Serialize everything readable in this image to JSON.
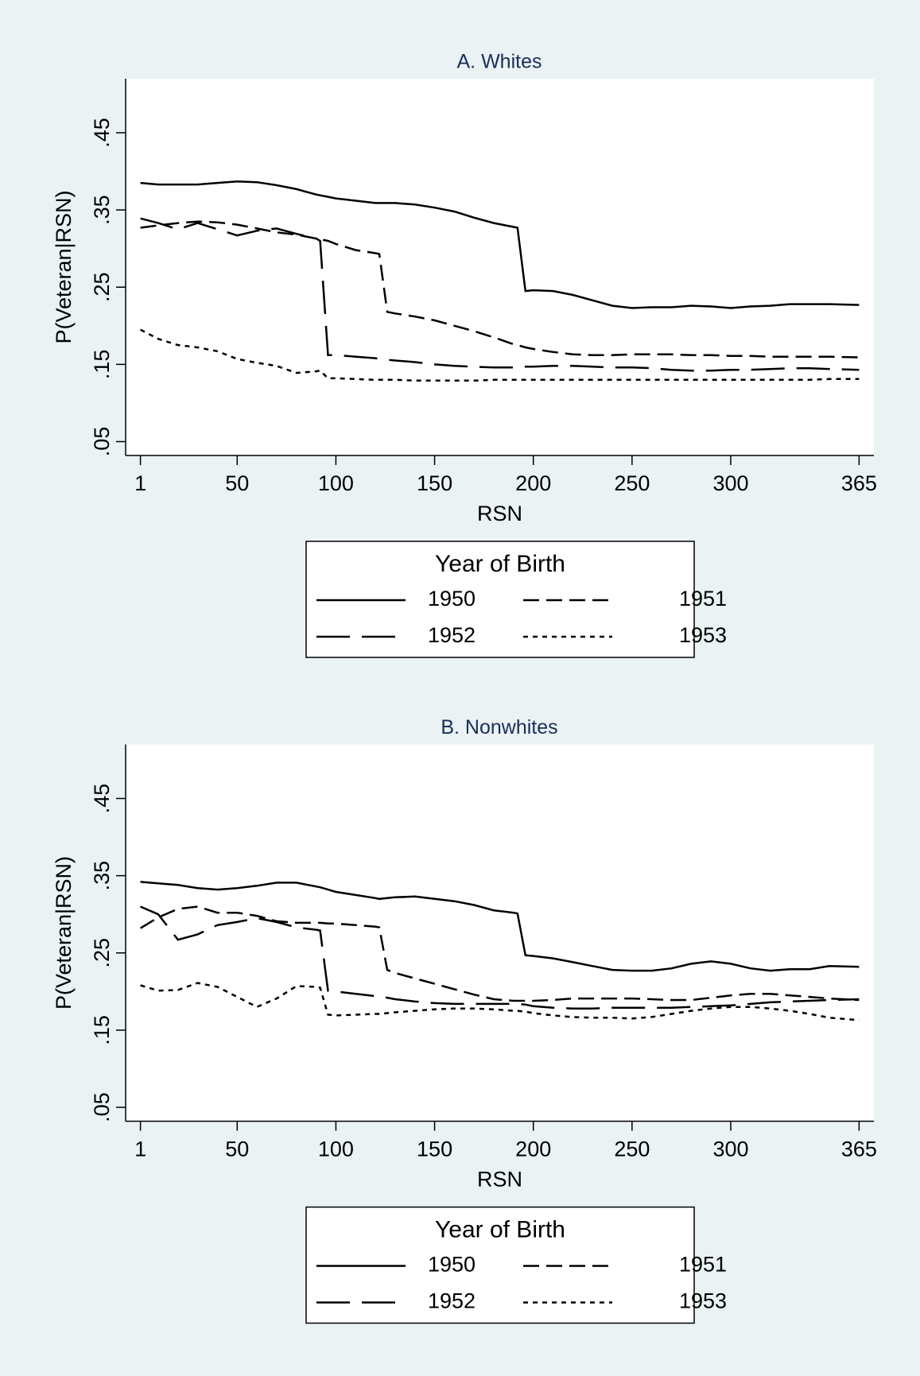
{
  "chart_data": [
    {
      "type": "line",
      "title": "A. Whites",
      "x_label": "RSN",
      "y_label": "P(Veteran|RSN)",
      "legend_title": "Year of Birth",
      "color": "#000000",
      "x": [
        1,
        10,
        20,
        30,
        40,
        50,
        60,
        70,
        80,
        90,
        92,
        96,
        100,
        110,
        120,
        122,
        126,
        130,
        140,
        150,
        160,
        170,
        180,
        190,
        192,
        196,
        200,
        210,
        220,
        230,
        240,
        250,
        260,
        270,
        280,
        290,
        300,
        310,
        320,
        330,
        340,
        350,
        365
      ],
      "xlim": [
        -6.5,
        372.5
      ],
      "xticks": [
        1,
        50,
        100,
        150,
        200,
        250,
        300,
        365
      ],
      "ylim": [
        0.032,
        0.52
      ],
      "yticks": [
        {
          "value": 0.05,
          "label": ".05"
        },
        {
          "value": 0.15,
          "label": ".15"
        },
        {
          "value": 0.25,
          "label": ".25"
        },
        {
          "value": 0.35,
          "label": ".35"
        },
        {
          "value": 0.45,
          "label": ".45"
        }
      ],
      "series": [
        {
          "name": "1950",
          "dash": "solid",
          "values": [
            0.385,
            0.383,
            0.383,
            0.383,
            0.385,
            0.387,
            0.386,
            0.382,
            0.377,
            0.37,
            0.369,
            0.367,
            0.365,
            0.362,
            0.359,
            0.359,
            0.359,
            0.359,
            0.357,
            0.353,
            0.348,
            0.34,
            0.333,
            0.328,
            0.327,
            0.245,
            0.246,
            0.245,
            0.24,
            0.233,
            0.226,
            0.223,
            0.224,
            0.224,
            0.226,
            0.225,
            0.223,
            0.225,
            0.226,
            0.228,
            0.228,
            0.228,
            0.227
          ]
        },
        {
          "name": "1951",
          "dash": "medium-dash",
          "values": [
            0.327,
            0.33,
            0.333,
            0.335,
            0.334,
            0.331,
            0.326,
            0.321,
            0.318,
            0.313,
            0.312,
            0.31,
            0.306,
            0.298,
            0.294,
            0.293,
            0.218,
            0.216,
            0.212,
            0.207,
            0.2,
            0.193,
            0.185,
            0.176,
            0.175,
            0.172,
            0.17,
            0.166,
            0.163,
            0.162,
            0.162,
            0.163,
            0.163,
            0.163,
            0.162,
            0.162,
            0.161,
            0.161,
            0.16,
            0.16,
            0.16,
            0.16,
            0.159
          ]
        },
        {
          "name": "1952",
          "dash": "long-dash",
          "values": [
            0.339,
            0.333,
            0.325,
            0.333,
            0.325,
            0.317,
            0.323,
            0.326,
            0.319,
            0.313,
            0.31,
            0.162,
            0.162,
            0.16,
            0.158,
            0.157,
            0.156,
            0.155,
            0.153,
            0.15,
            0.148,
            0.147,
            0.146,
            0.146,
            0.146,
            0.147,
            0.147,
            0.148,
            0.148,
            0.147,
            0.146,
            0.146,
            0.145,
            0.143,
            0.142,
            0.142,
            0.143,
            0.143,
            0.144,
            0.145,
            0.145,
            0.144,
            0.143
          ]
        },
        {
          "name": "1953",
          "dash": "short-dash",
          "values": [
            0.195,
            0.183,
            0.175,
            0.172,
            0.167,
            0.157,
            0.152,
            0.148,
            0.139,
            0.141,
            0.142,
            0.132,
            0.132,
            0.131,
            0.13,
            0.13,
            0.13,
            0.13,
            0.129,
            0.129,
            0.129,
            0.129,
            0.13,
            0.13,
            0.13,
            0.13,
            0.13,
            0.13,
            0.13,
            0.13,
            0.13,
            0.13,
            0.13,
            0.13,
            0.13,
            0.13,
            0.13,
            0.13,
            0.13,
            0.13,
            0.13,
            0.131,
            0.131
          ]
        }
      ]
    },
    {
      "type": "line",
      "title": "B. Nonwhites",
      "x_label": "RSN",
      "y_label": "P(Veteran|RSN)",
      "legend_title": "Year of Birth",
      "color": "#000000",
      "x": [
        1,
        10,
        20,
        30,
        40,
        50,
        60,
        70,
        80,
        90,
        92,
        96,
        100,
        110,
        120,
        122,
        126,
        130,
        140,
        150,
        160,
        170,
        180,
        190,
        192,
        196,
        200,
        210,
        220,
        230,
        240,
        250,
        260,
        270,
        280,
        290,
        300,
        310,
        320,
        330,
        340,
        350,
        365
      ],
      "xlim": [
        -6.5,
        372.5
      ],
      "xticks": [
        1,
        50,
        100,
        150,
        200,
        250,
        300,
        365
      ],
      "ylim": [
        0.032,
        0.52
      ],
      "yticks": [
        {
          "value": 0.05,
          "label": ".05"
        },
        {
          "value": 0.15,
          "label": ".15"
        },
        {
          "value": 0.25,
          "label": ".25"
        },
        {
          "value": 0.35,
          "label": ".35"
        },
        {
          "value": 0.45,
          "label": ".45"
        }
      ],
      "series": [
        {
          "name": "1950",
          "dash": "solid",
          "values": [
            0.342,
            0.34,
            0.338,
            0.334,
            0.332,
            0.334,
            0.337,
            0.341,
            0.341,
            0.336,
            0.335,
            0.332,
            0.329,
            0.325,
            0.321,
            0.32,
            0.321,
            0.322,
            0.323,
            0.32,
            0.317,
            0.312,
            0.305,
            0.302,
            0.301,
            0.247,
            0.246,
            0.243,
            0.238,
            0.233,
            0.228,
            0.227,
            0.227,
            0.23,
            0.236,
            0.239,
            0.236,
            0.23,
            0.227,
            0.229,
            0.229,
            0.233,
            0.232
          ]
        },
        {
          "name": "1951",
          "dash": "medium-dash",
          "values": [
            0.282,
            0.296,
            0.307,
            0.31,
            0.302,
            0.302,
            0.298,
            0.291,
            0.289,
            0.289,
            0.289,
            0.288,
            0.288,
            0.286,
            0.284,
            0.283,
            0.228,
            0.224,
            0.217,
            0.21,
            0.203,
            0.196,
            0.19,
            0.188,
            0.188,
            0.188,
            0.188,
            0.189,
            0.191,
            0.191,
            0.191,
            0.191,
            0.19,
            0.189,
            0.189,
            0.192,
            0.195,
            0.197,
            0.197,
            0.195,
            0.193,
            0.191,
            0.189
          ]
        },
        {
          "name": "1952",
          "dash": "long-dash",
          "values": [
            0.31,
            0.3,
            0.267,
            0.274,
            0.286,
            0.29,
            0.295,
            0.29,
            0.283,
            0.28,
            0.279,
            0.201,
            0.2,
            0.197,
            0.194,
            0.193,
            0.192,
            0.19,
            0.187,
            0.185,
            0.184,
            0.184,
            0.184,
            0.184,
            0.184,
            0.183,
            0.181,
            0.179,
            0.178,
            0.178,
            0.179,
            0.179,
            0.179,
            0.179,
            0.18,
            0.181,
            0.182,
            0.184,
            0.186,
            0.187,
            0.188,
            0.189,
            0.19
          ]
        },
        {
          "name": "1953",
          "dash": "short-dash",
          "values": [
            0.208,
            0.201,
            0.202,
            0.211,
            0.206,
            0.193,
            0.18,
            0.191,
            0.207,
            0.206,
            0.205,
            0.17,
            0.169,
            0.17,
            0.171,
            0.171,
            0.172,
            0.173,
            0.175,
            0.177,
            0.178,
            0.178,
            0.177,
            0.175,
            0.175,
            0.174,
            0.172,
            0.169,
            0.167,
            0.166,
            0.166,
            0.165,
            0.167,
            0.171,
            0.175,
            0.178,
            0.18,
            0.18,
            0.178,
            0.175,
            0.171,
            0.166,
            0.163
          ]
        }
      ]
    }
  ]
}
